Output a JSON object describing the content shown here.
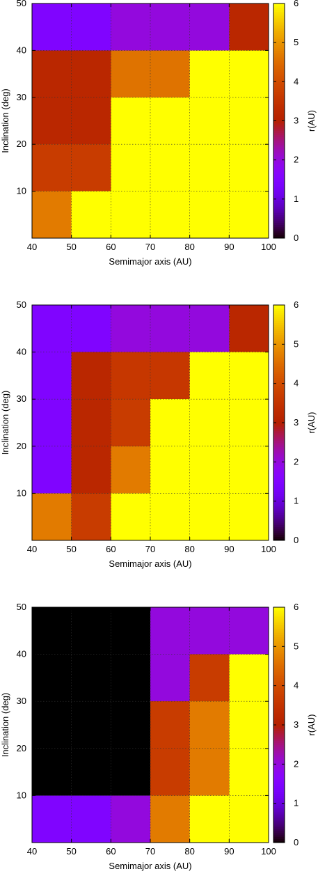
{
  "colorbar": {
    "label": "r(AU)",
    "ticks": [
      "0",
      "1",
      "2",
      "3",
      "4",
      "5",
      "6"
    ],
    "range": [
      0,
      6
    ],
    "palette": "gnuplot rgbformulae 7,5,15 (black-purple-red-orange-yellow)"
  },
  "chart_data": [
    {
      "type": "heatmap",
      "title": "",
      "xlabel": "Semimajor axis (AU)",
      "ylabel": "Inclination (deg)",
      "xlim": [
        40,
        100
      ],
      "ylim": [
        0,
        50
      ],
      "x_ticks": [
        "40",
        "50",
        "60",
        "70",
        "80",
        "90",
        "100"
      ],
      "y_ticks": [
        "10",
        "20",
        "30",
        "40",
        "50"
      ],
      "x_edges": [
        40,
        50,
        60,
        70,
        80,
        90,
        100
      ],
      "y_edges": [
        0,
        10,
        20,
        30,
        40,
        50
      ],
      "grid": true,
      "cells": [
        {
          "x0": 40,
          "x1": 50,
          "y0": 0,
          "y1": 10,
          "v": 4.7
        },
        {
          "x0": 50,
          "x1": 100,
          "y0": 0,
          "y1": 10,
          "v": 6
        },
        {
          "x0": 40,
          "x1": 60,
          "y0": 10,
          "y1": 20,
          "v": 3.7
        },
        {
          "x0": 60,
          "x1": 100,
          "y0": 10,
          "y1": 20,
          "v": 6
        },
        {
          "x0": 40,
          "x1": 60,
          "y0": 20,
          "y1": 30,
          "v": 3.2
        },
        {
          "x0": 60,
          "x1": 100,
          "y0": 20,
          "y1": 30,
          "v": 6
        },
        {
          "x0": 40,
          "x1": 60,
          "y0": 30,
          "y1": 40,
          "v": 3.2
        },
        {
          "x0": 60,
          "x1": 80,
          "y0": 30,
          "y1": 40,
          "v": 4.6
        },
        {
          "x0": 80,
          "x1": 100,
          "y0": 30,
          "y1": 40,
          "v": 6
        },
        {
          "x0": 40,
          "x1": 60,
          "y0": 40,
          "y1": 50,
          "v": 1.5
        },
        {
          "x0": 60,
          "x1": 90,
          "y0": 40,
          "y1": 50,
          "v": 2
        },
        {
          "x0": 90,
          "x1": 100,
          "y0": 40,
          "y1": 50,
          "v": 3.2
        }
      ]
    },
    {
      "type": "heatmap",
      "title": "",
      "xlabel": "Semimajor axis (AU)",
      "ylabel": "Inclination (deg)",
      "xlim": [
        40,
        100
      ],
      "ylim": [
        0,
        50
      ],
      "x_ticks": [
        "40",
        "50",
        "60",
        "70",
        "80",
        "90",
        "100"
      ],
      "y_ticks": [
        "10",
        "20",
        "30",
        "40",
        "50"
      ],
      "x_edges": [
        40,
        50,
        60,
        70,
        80,
        90,
        100
      ],
      "y_edges": [
        0,
        10,
        20,
        30,
        40,
        50
      ],
      "grid": true,
      "cells": [
        {
          "x0": 40,
          "x1": 50,
          "y0": 0,
          "y1": 10,
          "v": 4.7
        },
        {
          "x0": 50,
          "x1": 60,
          "y0": 0,
          "y1": 10,
          "v": 3.7
        },
        {
          "x0": 60,
          "x1": 100,
          "y0": 0,
          "y1": 10,
          "v": 6
        },
        {
          "x0": 40,
          "x1": 50,
          "y0": 10,
          "y1": 40,
          "v": 1.5
        },
        {
          "x0": 50,
          "x1": 60,
          "y0": 10,
          "y1": 40,
          "v": 3.2
        },
        {
          "x0": 60,
          "x1": 70,
          "y0": 10,
          "y1": 20,
          "v": 4.7
        },
        {
          "x0": 70,
          "x1": 100,
          "y0": 10,
          "y1": 20,
          "v": 6
        },
        {
          "x0": 60,
          "x1": 70,
          "y0": 20,
          "y1": 30,
          "v": 3.7
        },
        {
          "x0": 70,
          "x1": 100,
          "y0": 20,
          "y1": 30,
          "v": 6
        },
        {
          "x0": 60,
          "x1": 80,
          "y0": 30,
          "y1": 40,
          "v": 3.6
        },
        {
          "x0": 80,
          "x1": 100,
          "y0": 30,
          "y1": 40,
          "v": 6
        },
        {
          "x0": 40,
          "x1": 60,
          "y0": 40,
          "y1": 50,
          "v": 1.5
        },
        {
          "x0": 60,
          "x1": 90,
          "y0": 40,
          "y1": 50,
          "v": 2
        },
        {
          "x0": 90,
          "x1": 100,
          "y0": 40,
          "y1": 50,
          "v": 3.2
        }
      ]
    },
    {
      "type": "heatmap",
      "title": "",
      "xlabel": "Semimajor axis (AU)",
      "ylabel": "Inclination (deg)",
      "xlim": [
        40,
        100
      ],
      "ylim": [
        0,
        50
      ],
      "x_ticks": [
        "40",
        "50",
        "60",
        "70",
        "80",
        "90",
        "100"
      ],
      "y_ticks": [
        "10",
        "20",
        "30",
        "40",
        "50"
      ],
      "x_edges": [
        40,
        50,
        60,
        70,
        80,
        90,
        100
      ],
      "y_edges": [
        0,
        10,
        20,
        30,
        40,
        50
      ],
      "grid": true,
      "cells": [
        {
          "x0": 40,
          "x1": 60,
          "y0": 0,
          "y1": 10,
          "v": 1.5
        },
        {
          "x0": 60,
          "x1": 70,
          "y0": 0,
          "y1": 10,
          "v": 2
        },
        {
          "x0": 70,
          "x1": 80,
          "y0": 0,
          "y1": 10,
          "v": 4.7
        },
        {
          "x0": 80,
          "x1": 100,
          "y0": 0,
          "y1": 10,
          "v": 6
        },
        {
          "x0": 40,
          "x1": 70,
          "y0": 10,
          "y1": 50,
          "v": 0
        },
        {
          "x0": 70,
          "x1": 80,
          "y0": 10,
          "y1": 30,
          "v": 3.7
        },
        {
          "x0": 80,
          "x1": 90,
          "y0": 10,
          "y1": 30,
          "v": 4.7
        },
        {
          "x0": 90,
          "x1": 100,
          "y0": 10,
          "y1": 30,
          "v": 6
        },
        {
          "x0": 70,
          "x1": 80,
          "y0": 30,
          "y1": 40,
          "v": 2
        },
        {
          "x0": 80,
          "x1": 90,
          "y0": 30,
          "y1": 40,
          "v": 3.7
        },
        {
          "x0": 90,
          "x1": 100,
          "y0": 30,
          "y1": 40,
          "v": 6
        },
        {
          "x0": 70,
          "x1": 100,
          "y0": 40,
          "y1": 50,
          "v": 2
        }
      ]
    }
  ]
}
